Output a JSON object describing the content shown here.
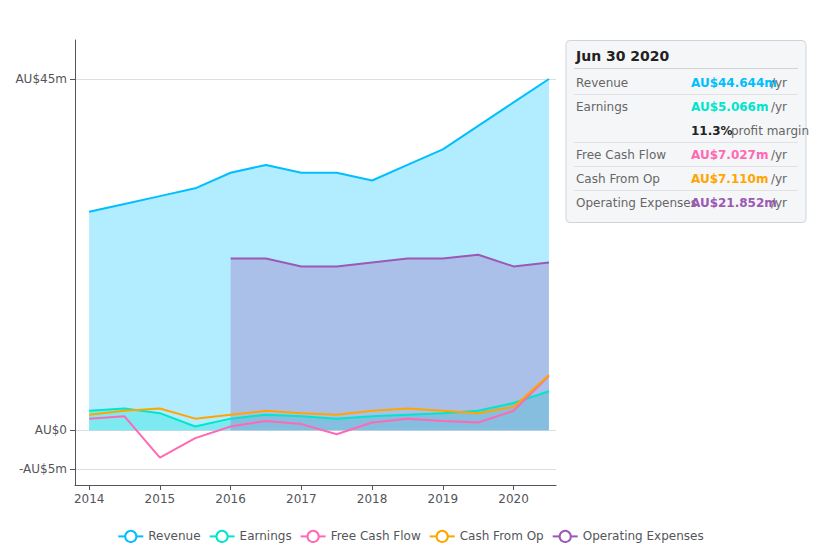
{
  "chart_data": {
    "type": "line",
    "title": "Jun 30 2020",
    "x": [
      2014,
      2014.5,
      2015,
      2015.5,
      2016,
      2016.5,
      2017,
      2017.5,
      2018,
      2018.5,
      2019,
      2019.5,
      2020,
      2020.5
    ],
    "series": [
      {
        "name": "Revenue",
        "color": "#00bfff",
        "type": "area",
        "values": [
          28,
          29,
          30,
          31,
          33,
          34,
          33,
          33,
          32,
          34,
          36,
          39,
          42,
          45
        ]
      },
      {
        "name": "Earnings",
        "color": "#00e5cc",
        "type": "area",
        "values": [
          2.5,
          2.8,
          2.2,
          0.5,
          1.5,
          2.0,
          1.8,
          1.5,
          1.8,
          2.0,
          2.2,
          2.5,
          3.5,
          5.0
        ]
      },
      {
        "name": "Free Cash Flow",
        "color": "#ff69b4",
        "type": "line",
        "values": [
          1.5,
          1.8,
          -3.5,
          -1.0,
          0.5,
          1.2,
          0.8,
          -0.5,
          1.0,
          1.5,
          1.2,
          1.0,
          2.5,
          7.0
        ]
      },
      {
        "name": "Cash From Op",
        "color": "#ffa500",
        "type": "line",
        "values": [
          2.0,
          2.5,
          2.8,
          1.5,
          2.0,
          2.5,
          2.2,
          2.0,
          2.5,
          2.8,
          2.5,
          2.2,
          3.0,
          7.1
        ]
      },
      {
        "name": "Operating Expenses",
        "color": "#9b59b6",
        "type": "area",
        "values": [
          null,
          null,
          null,
          null,
          22,
          22,
          21,
          21,
          21.5,
          22,
          22,
          22.5,
          21,
          21.5
        ]
      }
    ],
    "xlim": [
      2013.8,
      2020.6
    ],
    "xticks": [
      2014,
      2015,
      2016,
      2017,
      2018,
      2019,
      2020
    ],
    "ylim": [
      -7,
      50
    ],
    "yticks": [
      {
        "value": 45,
        "label": "AU$45m"
      },
      {
        "value": 0,
        "label": "AU$0"
      },
      {
        "value": -5,
        "label": "-AU$5m"
      }
    ],
    "grid": true,
    "legend": "bottom",
    "annotations": [
      {
        "label": "Revenue",
        "text": "AU$44.644m",
        "suffix": "/yr",
        "color": "#00bfff"
      },
      {
        "label": "Earnings",
        "text": "AU$5.066m",
        "suffix": "/yr",
        "color": "#00e5cc"
      },
      {
        "text": "11.3%",
        "suffix": "profit margin"
      },
      {
        "label": "Free Cash Flow",
        "text": "AU$7.027m",
        "suffix": "/yr",
        "color": "#ff69b4"
      },
      {
        "label": "Cash From Op",
        "text": "AU$7.110m",
        "suffix": "/yr",
        "color": "#ffa500"
      },
      {
        "label": "Operating Expenses",
        "text": "AU$21.852m",
        "suffix": "/yr",
        "color": "#9b59b6"
      }
    ]
  }
}
